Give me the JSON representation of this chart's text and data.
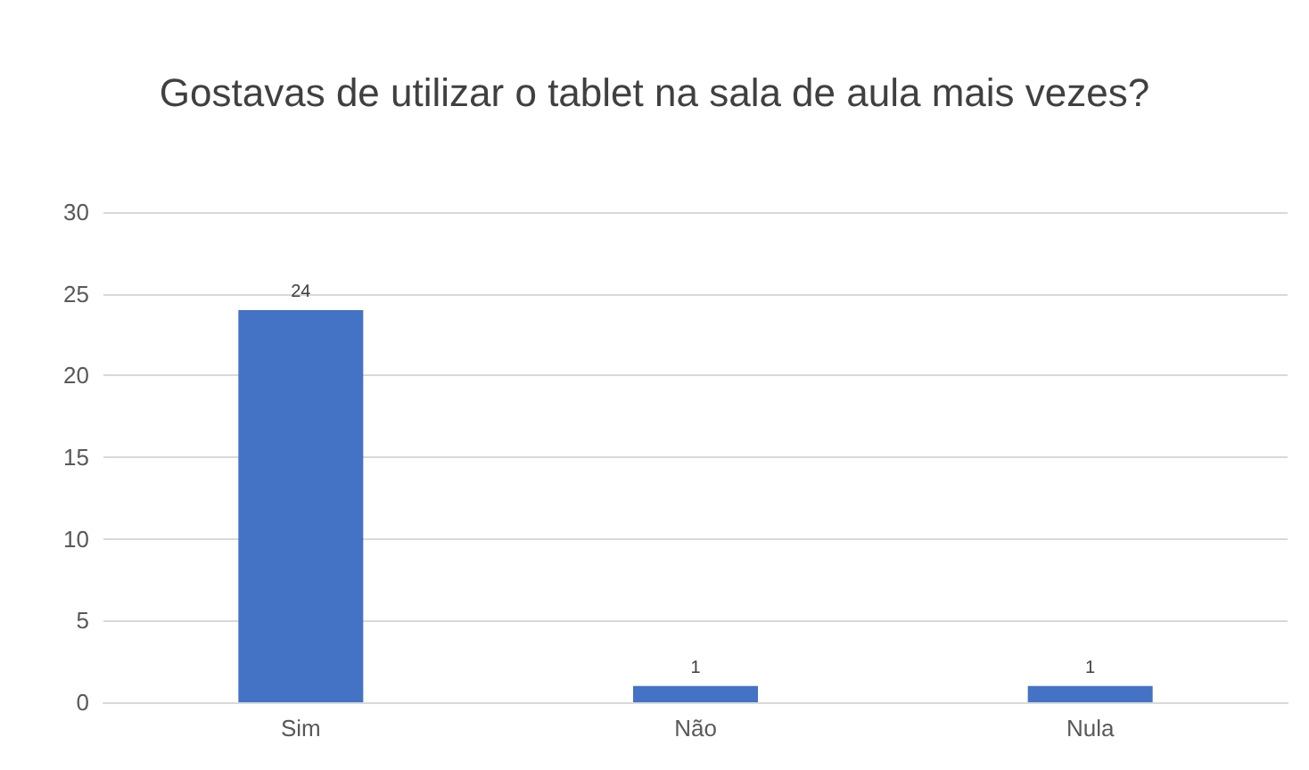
{
  "chart_data": {
    "type": "bar",
    "title": "Gostavas de utilizar o tablet na sala de aula mais vezes?",
    "categories": [
      "Sim",
      "Não",
      "Nula"
    ],
    "values": [
      24,
      1,
      1
    ],
    "color": "#4472c4",
    "ylim": [
      0,
      30
    ],
    "yticks": [
      0,
      5,
      10,
      15,
      20,
      25,
      30
    ],
    "grid": "y",
    "data_labels": true
  }
}
